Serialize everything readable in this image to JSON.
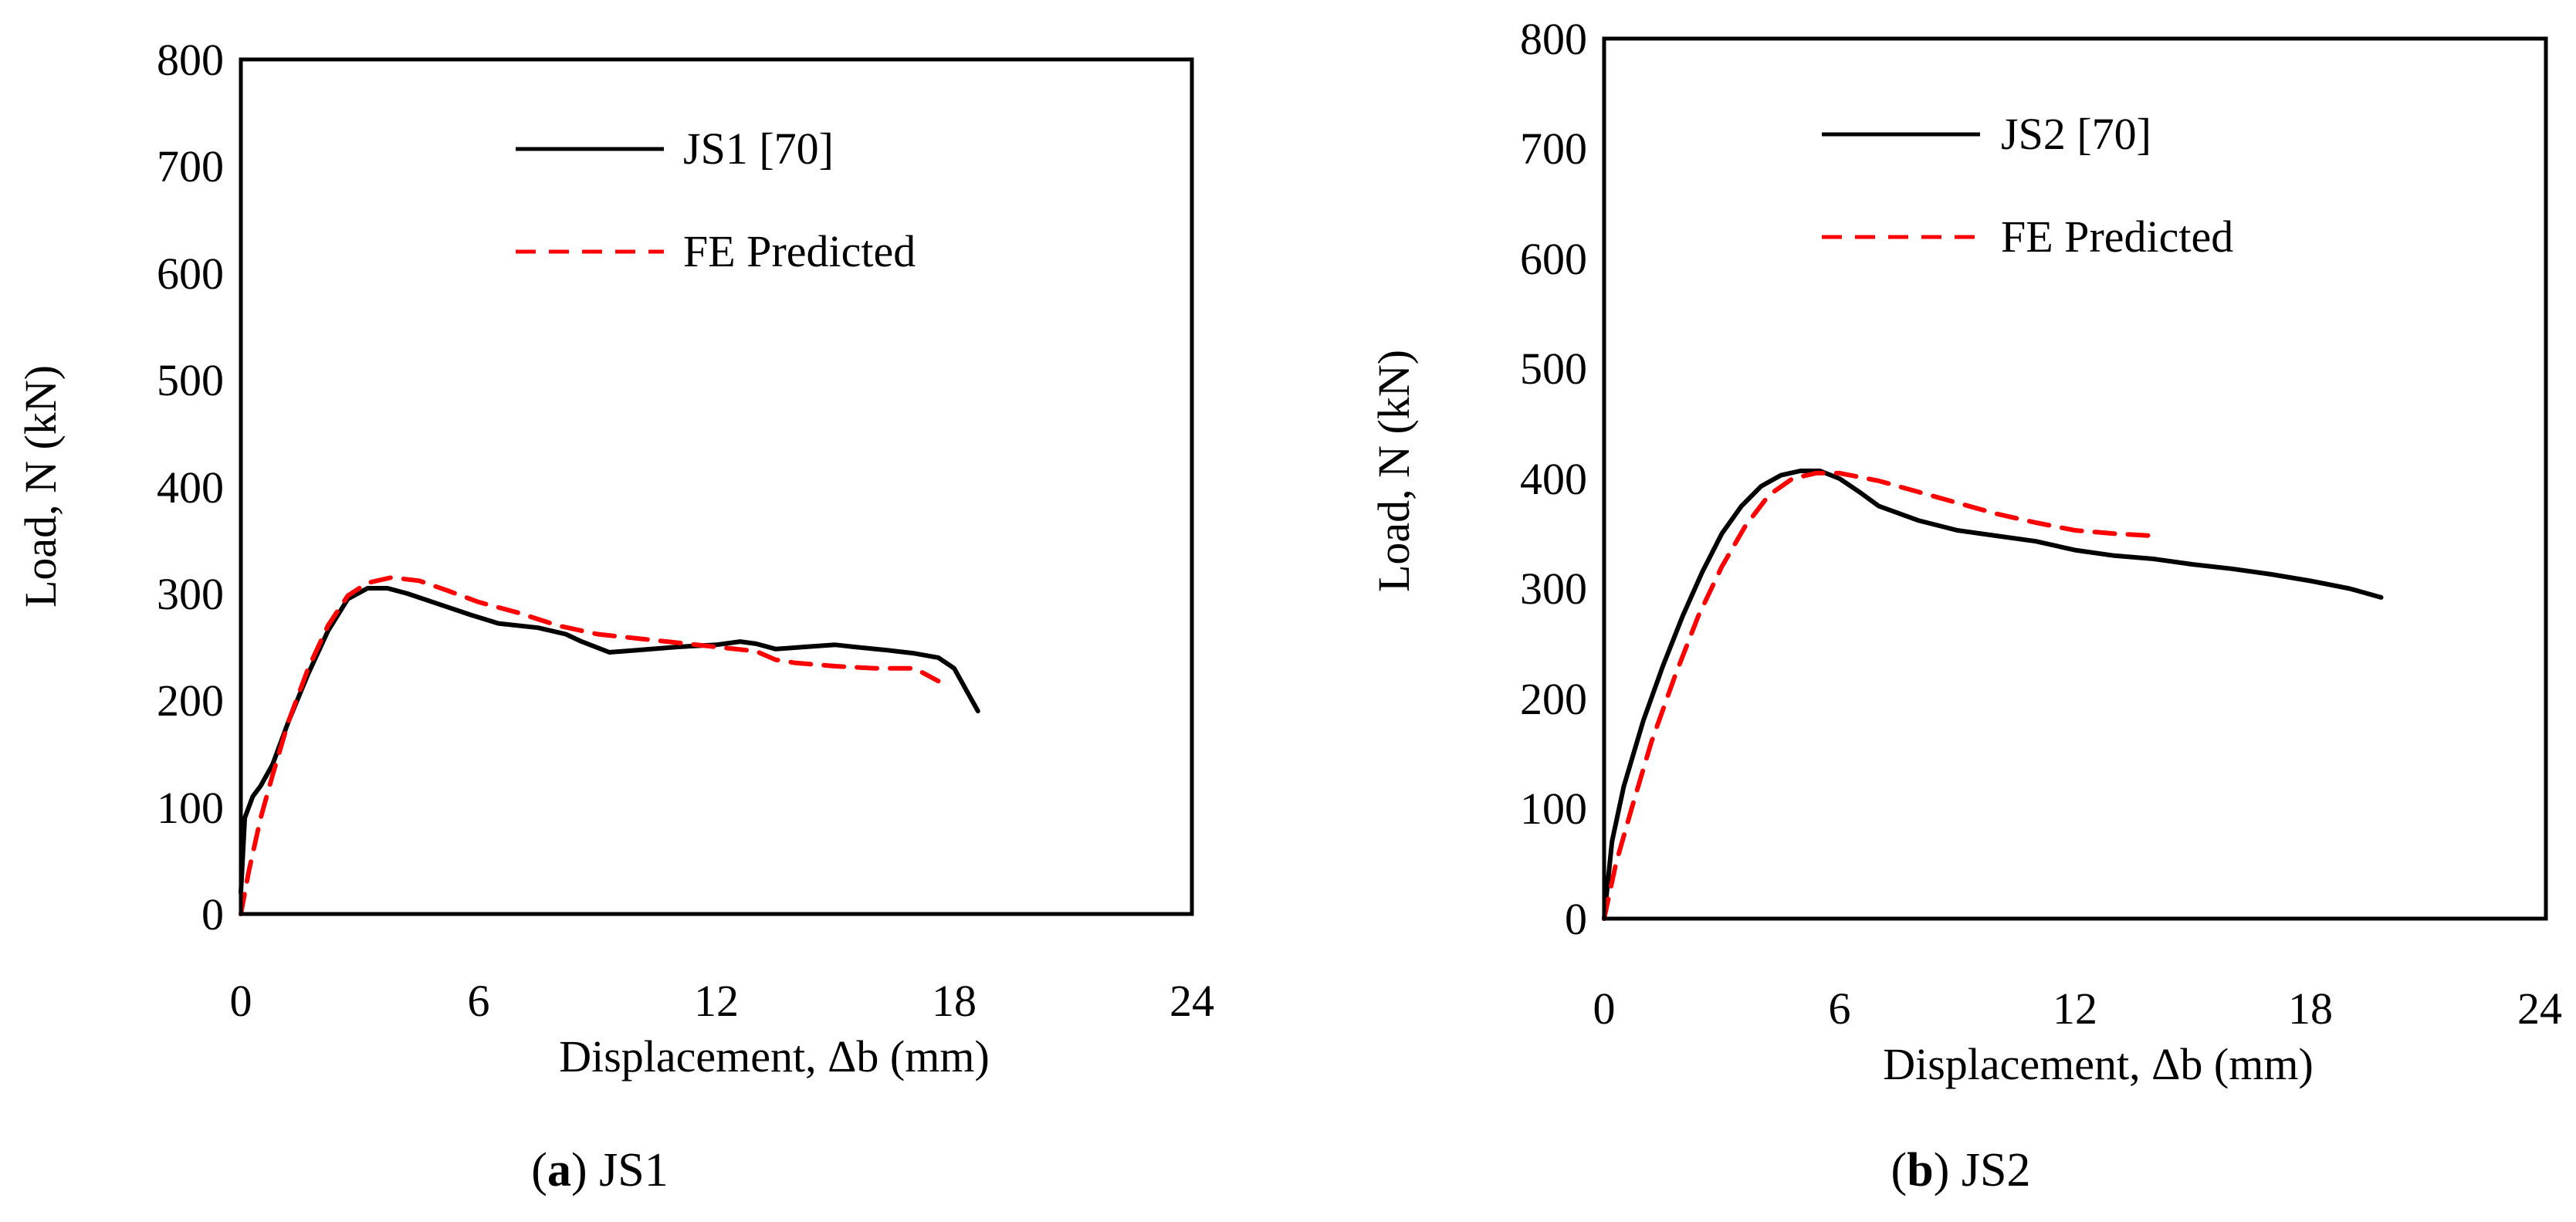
{
  "chart_data": [
    {
      "type": "line",
      "panel": "a",
      "caption": {
        "letter": "a",
        "text": "JS1"
      },
      "xlabel": "Displacement, Δb (mm)",
      "ylabel": "Load, N (kN)",
      "xlim": [
        0,
        24
      ],
      "ylim": [
        0,
        800
      ],
      "xticks": [
        "0",
        "6",
        "12",
        "18",
        "24"
      ],
      "yticks": [
        "0",
        "100",
        "200",
        "300",
        "400",
        "500",
        "600",
        "700",
        "800"
      ],
      "grid": false,
      "legend_position": "top-center",
      "series": [
        {
          "name": "JS1 [70]",
          "style": "solid",
          "color": "#000000",
          "x": [
            0,
            0.1,
            0.3,
            0.5,
            0.8,
            1.2,
            1.7,
            2.2,
            2.7,
            3.2,
            3.7,
            4.2,
            5.0,
            5.8,
            6.5,
            7.5,
            8.2,
            8.6,
            9.3,
            10.0,
            11.0,
            12.0,
            12.6,
            13.0,
            13.5,
            14.2,
            15.0,
            15.5,
            16.3,
            17.0,
            17.6,
            18.0,
            18.3,
            18.6
          ],
          "y": [
            20,
            90,
            110,
            120,
            140,
            180,
            225,
            265,
            295,
            305,
            305,
            300,
            290,
            280,
            272,
            268,
            262,
            255,
            245,
            247,
            250,
            252,
            255,
            253,
            248,
            250,
            252,
            250,
            247,
            244,
            240,
            230,
            210,
            190
          ]
        },
        {
          "name": "FE Predicted",
          "style": "dashed",
          "color": "#ff0000",
          "x": [
            0,
            0.2,
            0.5,
            0.8,
            1.2,
            1.7,
            2.2,
            2.7,
            3.2,
            3.8,
            4.5,
            5.2,
            6.0,
            7.0,
            8.0,
            9.0,
            10.0,
            11.0,
            12.0,
            13.0,
            13.5,
            14.0,
            15.0,
            16.0,
            17.0,
            17.6
          ],
          "y": [
            0,
            40,
            90,
            130,
            180,
            230,
            270,
            298,
            310,
            315,
            312,
            303,
            292,
            282,
            270,
            262,
            258,
            254,
            250,
            246,
            238,
            235,
            232,
            230,
            230,
            218
          ]
        }
      ]
    },
    {
      "type": "line",
      "panel": "b",
      "caption": {
        "letter": "b",
        "text": "JS2"
      },
      "xlabel": "Displacement, Δb (mm)",
      "ylabel": "Load, N (kN)",
      "xlim": [
        0,
        24
      ],
      "ylim": [
        0,
        800
      ],
      "xticks": [
        "0",
        "6",
        "12",
        "18",
        "24"
      ],
      "yticks": [
        "0",
        "100",
        "200",
        "300",
        "400",
        "500",
        "600",
        "700",
        "800"
      ],
      "grid": false,
      "legend_position": "top-center",
      "series": [
        {
          "name": "JS2 [70]",
          "style": "solid",
          "color": "#000000",
          "x": [
            0,
            0.2,
            0.5,
            1.0,
            1.5,
            2.0,
            2.5,
            3.0,
            3.5,
            4.0,
            4.5,
            5.0,
            5.5,
            6.0,
            6.5,
            7.0,
            8.0,
            9.0,
            10.0,
            11.0,
            12.0,
            13.0,
            14.0,
            15.0,
            16.0,
            17.0,
            18.0,
            19.0,
            19.8
          ],
          "y": [
            0,
            70,
            120,
            180,
            230,
            275,
            315,
            350,
            375,
            393,
            403,
            407,
            407,
            400,
            388,
            375,
            362,
            353,
            348,
            343,
            335,
            330,
            327,
            322,
            318,
            313,
            307,
            300,
            292
          ]
        },
        {
          "name": "FE Predicted",
          "style": "dashed",
          "color": "#ff0000",
          "x": [
            0,
            0.3,
            0.7,
            1.2,
            1.8,
            2.4,
            3.0,
            3.6,
            4.2,
            4.8,
            5.4,
            6.0,
            7.0,
            8.0,
            9.0,
            10.0,
            11.0,
            12.0,
            13.0,
            14.0
          ],
          "y": [
            0,
            50,
            100,
            160,
            220,
            275,
            320,
            357,
            385,
            400,
            405,
            405,
            398,
            388,
            378,
            368,
            360,
            353,
            350,
            348
          ]
        }
      ]
    }
  ]
}
